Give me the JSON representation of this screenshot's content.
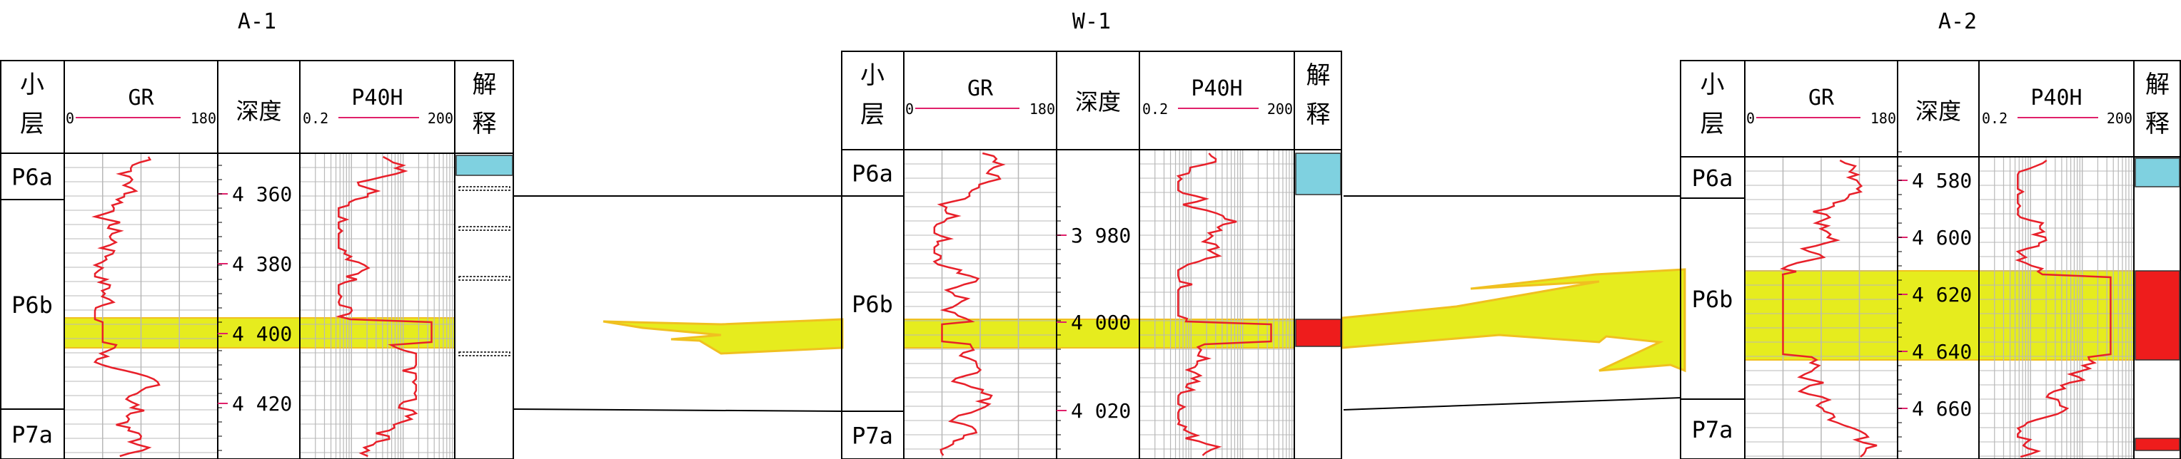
{
  "wells": [
    {
      "id": "A-1",
      "name": "A-1",
      "headers": {
        "layer": [
          "小",
          "层"
        ],
        "gr": "GR",
        "gr_min": "0",
        "gr_max": "180",
        "depth": "深度",
        "p40h": "P40H",
        "p40h_min": "0.2",
        "p40h_max": "200",
        "interp": [
          "解",
          "释"
        ]
      },
      "layers": [
        "P6a",
        "P6b",
        "P7a"
      ],
      "depth_ticks": [
        "4 360",
        "4 380",
        "4 400",
        "4 420"
      ]
    },
    {
      "id": "W-1",
      "name": "W-1",
      "headers": {
        "layer": [
          "小",
          "层"
        ],
        "gr": "GR",
        "gr_min": "0",
        "gr_max": "180",
        "depth": "深度",
        "p40h": "P40H",
        "p40h_min": "0.2",
        "p40h_max": "200",
        "interp": [
          "解",
          "释"
        ]
      },
      "layers": [
        "P6a",
        "P6b",
        "P7a"
      ],
      "depth_ticks": [
        "3 980",
        "4 000",
        "4 020"
      ]
    },
    {
      "id": "A-2",
      "name": "A-2",
      "headers": {
        "layer": [
          "小",
          "层"
        ],
        "gr": "GR",
        "gr_min": "0",
        "gr_max": "180",
        "depth": "深度",
        "p40h": "P40H",
        "p40h_min": "0.2",
        "p40h_max": "200",
        "interp": [
          "解",
          "释"
        ]
      },
      "layers": [
        "P6a",
        "P6b",
        "P7a"
      ],
      "depth_ticks": [
        "4 580",
        "4 600",
        "4 620",
        "4 640",
        "4 660"
      ]
    }
  ],
  "colors": {
    "frame": "#000000",
    "curve": "#e8202a",
    "scale_line": "#e0206a",
    "grid": "#b8b8b8",
    "sand_fill": "#e6ec1e",
    "sand_edge": "#f0c020",
    "water_layer": "#7fd1e0",
    "oil_layer": "#ee1c1c",
    "boundary": "#000000"
  }
}
